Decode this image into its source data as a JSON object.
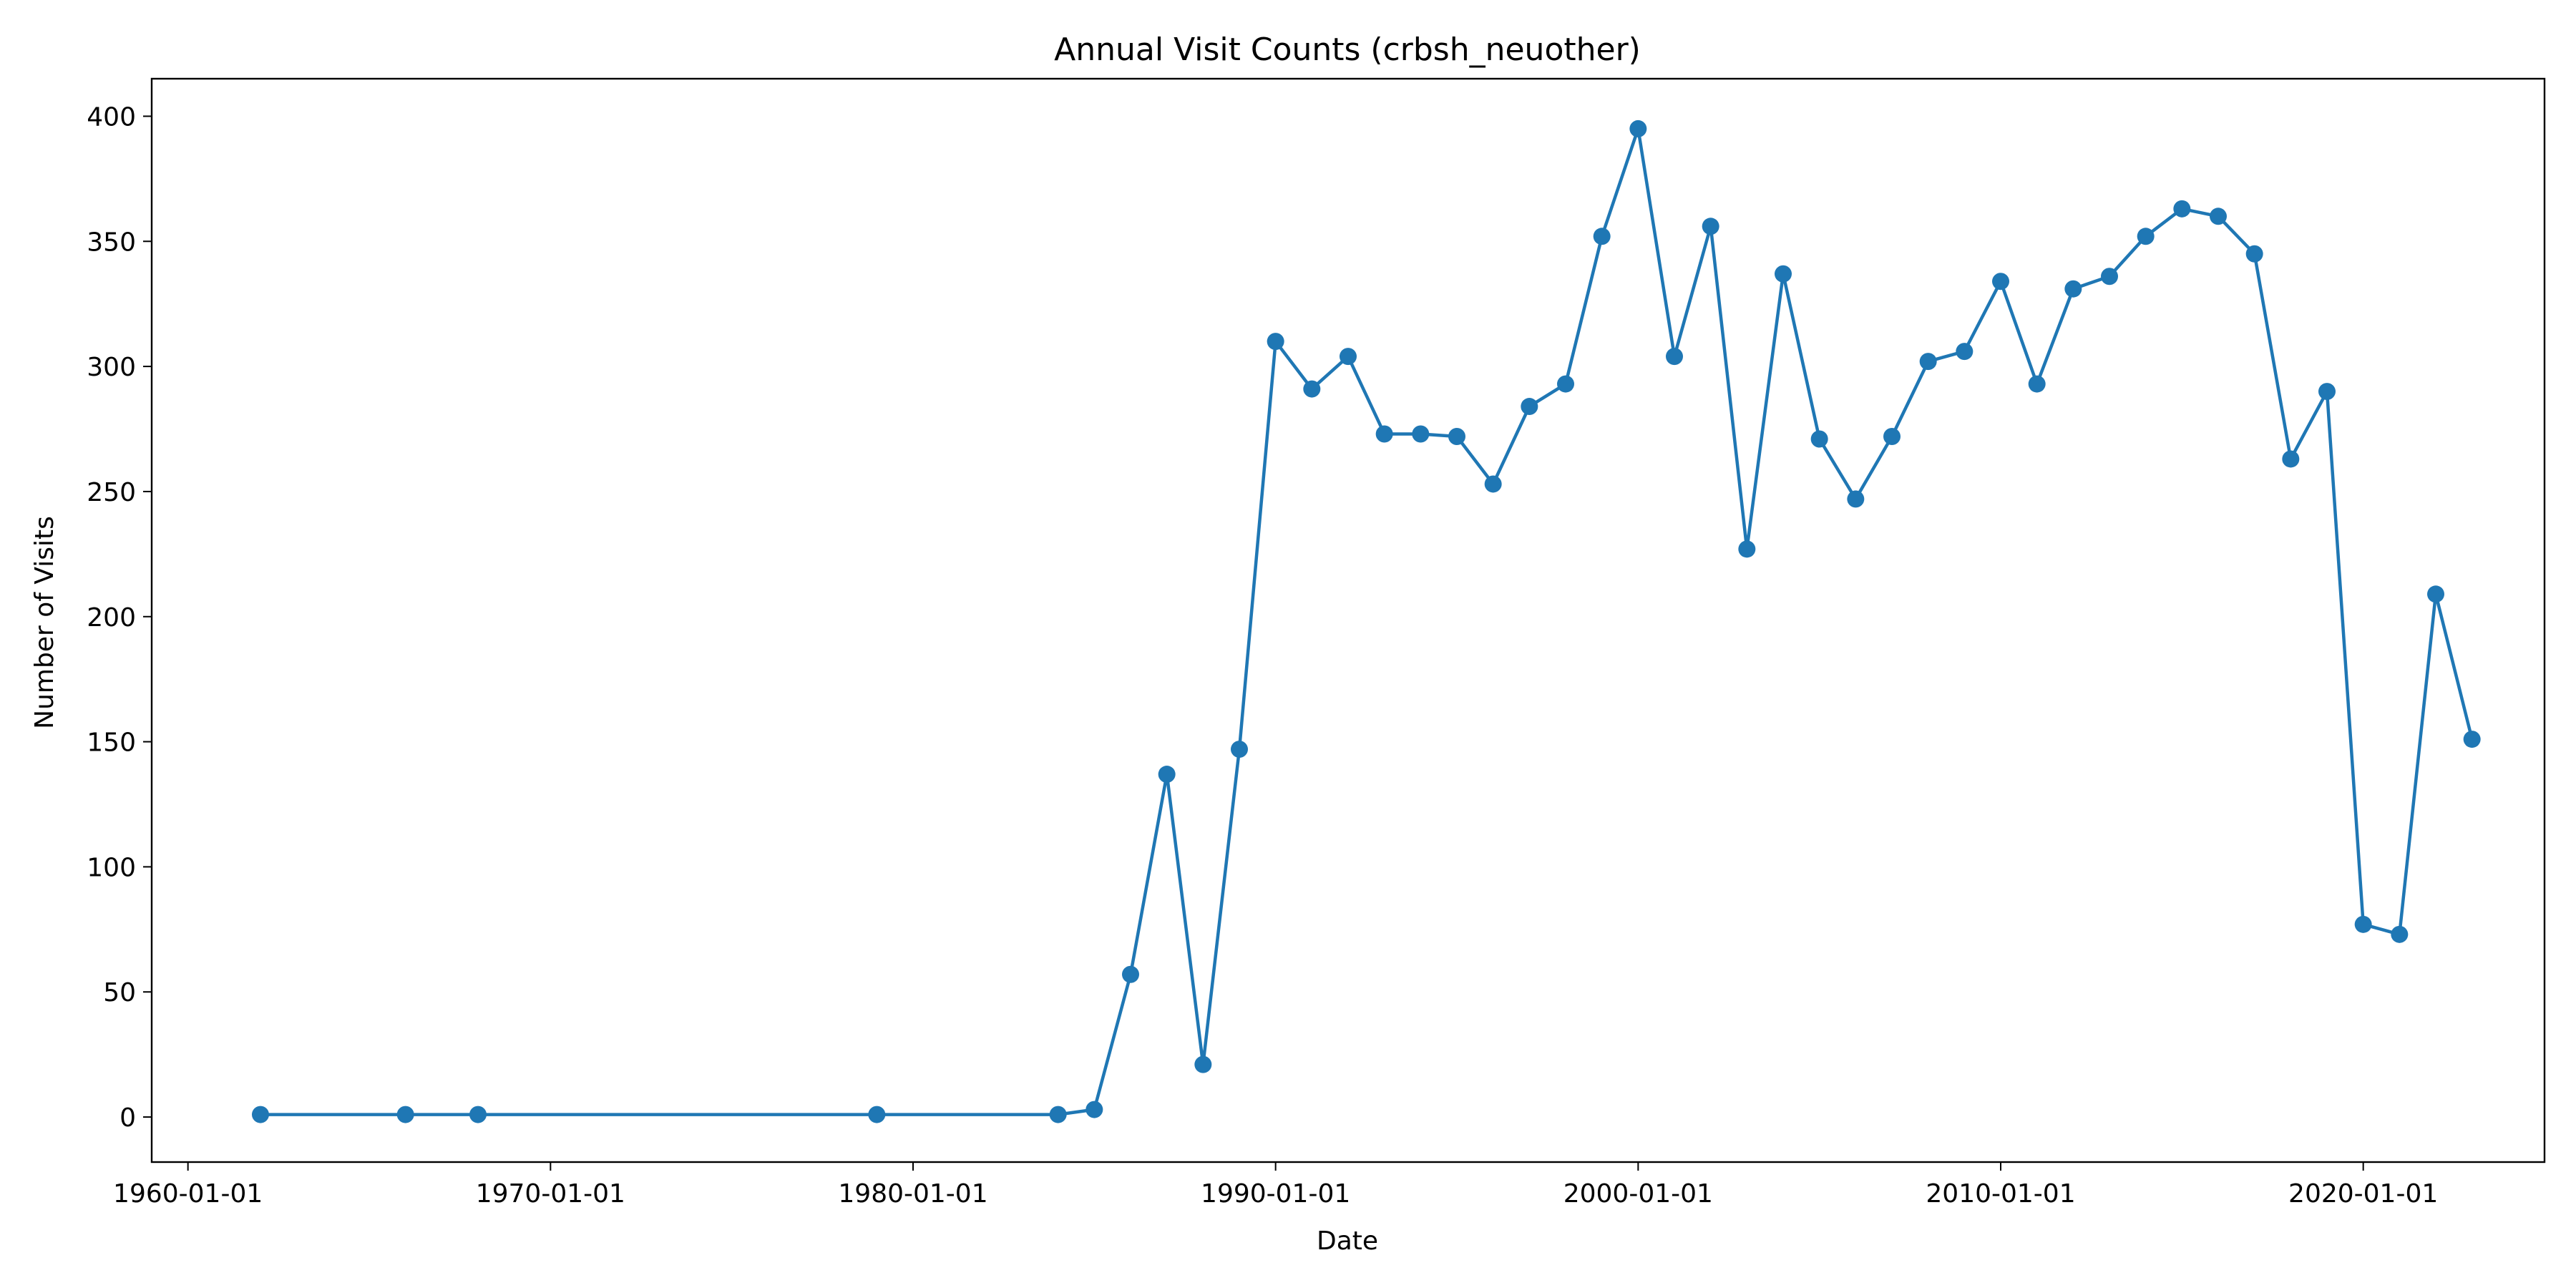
{
  "chart_data": {
    "type": "line",
    "title": "Annual Visit Counts (crbsh_neuother)",
    "xlabel": "Date",
    "ylabel": "Number of Visits",
    "x_axis": "date",
    "xlim": [
      "1959-01-01",
      "2025-01-01"
    ],
    "ylim": [
      -18,
      415
    ],
    "x_ticks": [
      "1960-01-01",
      "1970-01-01",
      "1980-01-01",
      "1990-01-01",
      "2000-01-01",
      "2010-01-01",
      "2020-01-01"
    ],
    "y_ticks": [
      0,
      50,
      100,
      150,
      200,
      250,
      300,
      350,
      400
    ],
    "grid": false,
    "legend": "none",
    "color": "#1f77b4",
    "marker": "circle",
    "series": [
      {
        "x": [
          "1962-01-01",
          "1966-01-01",
          "1968-01-01",
          "1979-01-01",
          "1984-01-01",
          "1985-01-01",
          "1986-01-01",
          "1987-01-01",
          "1988-01-01",
          "1989-01-01",
          "1990-01-01",
          "1991-01-01",
          "1992-01-01",
          "1993-01-01",
          "1994-01-01",
          "1995-01-01",
          "1996-01-01",
          "1997-01-01",
          "1998-01-01",
          "1999-01-01",
          "2000-01-01",
          "2001-01-01",
          "2002-01-01",
          "2003-01-01",
          "2004-01-01",
          "2005-01-01",
          "2006-01-01",
          "2007-01-01",
          "2008-01-01",
          "2009-01-01",
          "2010-01-01",
          "2011-01-01",
          "2012-01-01",
          "2013-01-01",
          "2014-01-01",
          "2015-01-01",
          "2016-01-01",
          "2017-01-01",
          "2018-01-01",
          "2019-01-01",
          "2020-01-01",
          "2021-01-01",
          "2022-01-01",
          "2023-01-01"
        ],
        "y": [
          1,
          1,
          1,
          1,
          1,
          3,
          57,
          137,
          21,
          147,
          310,
          291,
          304,
          273,
          273,
          272,
          253,
          284,
          293,
          352,
          395,
          304,
          356,
          227,
          337,
          271,
          247,
          272,
          302,
          306,
          334,
          293,
          331,
          336,
          352,
          363,
          360,
          345,
          263,
          290,
          77,
          73,
          209,
          151
        ]
      }
    ]
  }
}
